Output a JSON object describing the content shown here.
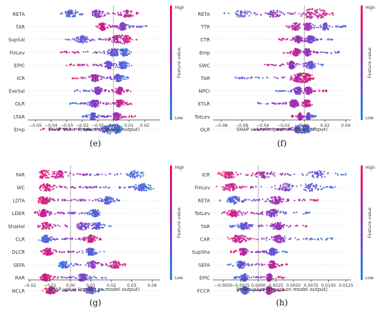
{
  "chart_data": [
    {
      "type": "beeswarm",
      "panel_label": "(e)",
      "xlabel": "SHAP value (impact on model output)",
      "colorbar": {
        "label": "Feature value",
        "high": "High",
        "low": "Low"
      },
      "xlim": [
        -0.055,
        0.03
      ],
      "xticks": [
        -0.05,
        -0.04,
        -0.03,
        -0.02,
        -0.01,
        0.0,
        0.01,
        0.02
      ],
      "xtick_labels": [
        "−0.05",
        "−0.04",
        "−0.03",
        "−0.02",
        "−0.01",
        "0.00",
        "0.01",
        "0.02"
      ],
      "features": [
        {
          "name": "RETA",
          "min": -0.034,
          "max": 0.017,
          "peaks": [
            -0.027,
            -0.01,
            0.009
          ],
          "pos": "high"
        },
        {
          "name": "TAR",
          "min": -0.012,
          "max": 0.022,
          "peaks": [
            -0.007,
            0.006
          ],
          "pos": "low"
        },
        {
          "name": "SupSal",
          "min": -0.031,
          "max": 0.016,
          "peaks": [
            -0.02,
            0.002,
            0.008
          ],
          "pos": "high"
        },
        {
          "name": "FinLev",
          "min": -0.035,
          "max": 0.012,
          "peaks": [
            0.0,
            0.007
          ],
          "pos": "low"
        },
        {
          "name": "EPIC",
          "min": -0.03,
          "max": 0.012,
          "peaks": [
            -0.003,
            0.006
          ],
          "pos": "low"
        },
        {
          "name": "ICR",
          "min": -0.027,
          "max": 0.011,
          "peaks": [
            -0.012,
            0.003
          ],
          "pos": "low"
        },
        {
          "name": "ExeSal",
          "min": -0.026,
          "max": 0.011,
          "peaks": [
            -0.01,
            0.004
          ],
          "pos": "high"
        },
        {
          "name": "OLR",
          "min": -0.028,
          "max": 0.012,
          "peaks": [
            -0.012,
            0.004
          ],
          "pos": "high"
        },
        {
          "name": "LTAR",
          "min": -0.02,
          "max": 0.014,
          "peaks": [
            -0.013,
            0.002
          ],
          "pos": "high"
        },
        {
          "name": "Emp",
          "min": -0.047,
          "max": 0.006,
          "peaks": [
            -0.004,
            0.002
          ],
          "pos": "low"
        }
      ]
    },
    {
      "type": "beeswarm",
      "panel_label": "(f)",
      "xlabel": "SHAP value (impact on model output)",
      "colorbar": {
        "label": "Feature value",
        "high": "High",
        "low": "Low"
      },
      "xlim": [
        -0.088,
        0.045
      ],
      "xticks": [
        -0.08,
        -0.06,
        -0.04,
        -0.02,
        0.0,
        0.02,
        0.04
      ],
      "xtick_labels": [
        "−0.08",
        "−0.06",
        "−0.04",
        "−0.02",
        "0.00",
        "0.02",
        "0.04"
      ],
      "features": [
        {
          "name": "RETA",
          "min": -0.08,
          "max": 0.028,
          "peaks": [
            -0.06,
            -0.03,
            0.005,
            0.015
          ],
          "pos": "high"
        },
        {
          "name": "TTR",
          "min": -0.022,
          "max": 0.04,
          "peaks": [
            -0.008,
            0.004,
            0.02
          ],
          "pos": "low"
        },
        {
          "name": "CTR",
          "min": -0.025,
          "max": 0.028,
          "peaks": [
            -0.006,
            0.006
          ],
          "pos": "low"
        },
        {
          "name": "Emp",
          "min": -0.02,
          "max": 0.035,
          "peaks": [
            -0.008,
            0.003
          ],
          "pos": "low"
        },
        {
          "name": "SWC",
          "min": -0.04,
          "max": 0.02,
          "peaks": [
            -0.012,
            0.006
          ],
          "pos": "low"
        },
        {
          "name": "TAR",
          "min": -0.068,
          "max": 0.012,
          "peaks": [
            -0.006,
            0.003
          ],
          "pos": "high"
        },
        {
          "name": "NPCI",
          "min": -0.028,
          "max": 0.022,
          "peaks": [
            -0.006,
            0.004
          ],
          "pos": "high"
        },
        {
          "name": "ETLR",
          "min": -0.045,
          "max": 0.012,
          "peaks": [
            -0.01,
            0.002
          ],
          "pos": "high"
        },
        {
          "name": "TotLev",
          "min": -0.012,
          "max": 0.012,
          "peaks": [
            -0.004,
            0.004
          ],
          "pos": "low"
        },
        {
          "name": "OLR",
          "min": -0.05,
          "max": 0.01,
          "peaks": [
            -0.006,
            0.002
          ],
          "pos": "low"
        }
      ]
    },
    {
      "type": "beeswarm",
      "panel_label": "(g)",
      "xlabel": "SHAP value (impact on model output)",
      "colorbar": {
        "label": "Feature value",
        "high": "High",
        "low": "Low"
      },
      "xlim": [
        -0.021,
        0.044
      ],
      "xticks": [
        -0.02,
        -0.01,
        0.0,
        0.01,
        0.02,
        0.03,
        0.04
      ],
      "xtick_labels": [
        "−0.02",
        "−0.01",
        "0.00",
        "0.01",
        "0.02",
        "0.03",
        "0.04"
      ],
      "features": [
        {
          "name": "FAR",
          "min": -0.015,
          "max": 0.036,
          "peaks": [
            -0.013,
            -0.006,
            0.032
          ],
          "pos": "low"
        },
        {
          "name": "WC",
          "min": -0.015,
          "max": 0.041,
          "peaks": [
            -0.012,
            0.035
          ],
          "pos": "low"
        },
        {
          "name": "LDTA",
          "min": -0.016,
          "max": 0.024,
          "peaks": [
            -0.013,
            0.018
          ],
          "pos": "low"
        },
        {
          "name": "LDER",
          "min": -0.018,
          "max": 0.015,
          "peaks": [
            -0.013,
            0.012
          ],
          "pos": "low"
        },
        {
          "name": "ShaHol",
          "min": -0.016,
          "max": 0.02,
          "peaks": [
            -0.012,
            0.006,
            0.013
          ],
          "pos": "low"
        },
        {
          "name": "CLR",
          "min": -0.016,
          "max": 0.015,
          "peaks": [
            -0.012,
            0.01
          ],
          "pos": "high"
        },
        {
          "name": "DLCR",
          "min": -0.015,
          "max": 0.017,
          "peaks": [
            -0.011,
            0.01
          ],
          "pos": "low"
        },
        {
          "name": "SEFA",
          "min": -0.006,
          "max": 0.027,
          "peaks": [
            -0.003,
            0.011,
            0.022
          ],
          "pos": "high"
        },
        {
          "name": "RAR",
          "min": -0.016,
          "max": 0.018,
          "peaks": [
            -0.012,
            0.006
          ],
          "pos": "low"
        },
        {
          "name": "NCLR",
          "min": -0.015,
          "max": 0.017,
          "peaks": [
            -0.01,
            0.01
          ],
          "pos": "low"
        }
      ]
    },
    {
      "type": "beeswarm",
      "panel_label": "(h)",
      "xlabel": "SHAP value (impact on model output)",
      "colorbar": {
        "label": "Feature value",
        "high": "High",
        "low": "Low"
      },
      "xlim": [
        -0.0065,
        0.0132
      ],
      "xticks": [
        -0.005,
        -0.0025,
        0.0,
        0.0025,
        0.005,
        0.0075,
        0.01,
        0.0125
      ],
      "xtick_labels": [
        "−0.0050",
        "−0.0025",
        "0.0000",
        "0.0025",
        "0.0050",
        "0.0075",
        "0.0100",
        "0.0125"
      ],
      "features": [
        {
          "name": "ICR",
          "min": -0.0058,
          "max": 0.0125,
          "peaks": [
            -0.0042,
            0.0008,
            0.0085
          ],
          "pos": "low"
        },
        {
          "name": "FinLev",
          "min": -0.006,
          "max": 0.0112,
          "peaks": [
            -0.004,
            0.004,
            0.0075
          ],
          "pos": "low"
        },
        {
          "name": "RETA",
          "min": -0.0058,
          "max": 0.0085,
          "peaks": [
            -0.0035,
            0.0025
          ],
          "pos": "high"
        },
        {
          "name": "TotLev",
          "min": -0.0055,
          "max": 0.0075,
          "peaks": [
            -0.0035,
            0.002
          ],
          "pos": "low"
        },
        {
          "name": "TAR",
          "min": -0.0045,
          "max": 0.0078,
          "peaks": [
            -0.002,
            0.0028
          ],
          "pos": "high"
        },
        {
          "name": "CAR",
          "min": -0.0045,
          "max": 0.0108,
          "peaks": [
            -0.0028,
            0.003
          ],
          "pos": "low"
        },
        {
          "name": "SupSha",
          "min": -0.004,
          "max": 0.0042,
          "peaks": [
            -0.0022,
            0.002
          ],
          "pos": "low"
        },
        {
          "name": "SEFA",
          "min": -0.0045,
          "max": 0.0042,
          "peaks": [
            -0.0025,
            0.002
          ],
          "pos": "high"
        },
        {
          "name": "EPIC",
          "min": -0.0035,
          "max": 0.0038,
          "peaks": [
            -0.002,
            0.0015
          ],
          "pos": "high"
        },
        {
          "name": "FCCR",
          "min": -0.003,
          "max": 0.004,
          "peaks": [
            -0.002,
            0.0015
          ],
          "pos": "high"
        }
      ]
    }
  ]
}
